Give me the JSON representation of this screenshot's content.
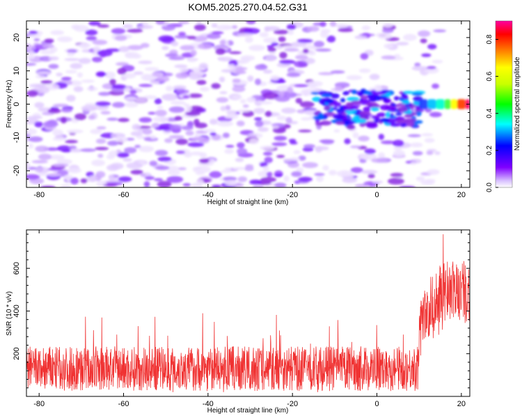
{
  "title": "KOM5.2025.270.04.52.G31",
  "colors": {
    "snr_line": "#f03232",
    "spectrogram_low": "#e6d2ff",
    "spectrogram_mid": "#8a2be2",
    "spectrogram_high": "#5a00ff"
  },
  "chart_data": [
    {
      "type": "heatmap",
      "xlabel": "Height of straight line (km)",
      "ylabel": "Frequency (Hz)",
      "xlim": [
        -83,
        22
      ],
      "ylim": [
        -25,
        25
      ],
      "xticks": [
        -80,
        -60,
        -40,
        -20,
        0,
        20
      ],
      "yticks": [
        -20,
        -10,
        0,
        10,
        20
      ],
      "colorbar": {
        "label": "Normalized spectral amplitude",
        "range": [
          0,
          0.9
        ],
        "ticks": [
          0.0,
          0.2,
          0.4,
          0.6,
          0.8
        ],
        "colormap": "rainbow (white-purple-blue-cyan-green-yellow-red-magenta)"
      },
      "features": [
        {
          "x_range": [
            -83,
            -15
          ],
          "y_range": [
            -25,
            25
          ],
          "amplitude": 0.1,
          "description": "diffuse purple noise"
        },
        {
          "x_range": [
            -15,
            10
          ],
          "y_range": [
            -7,
            4
          ],
          "amplitude": 0.3,
          "description": "concentrated blue signal near 0 Hz"
        },
        {
          "x_range": [
            10,
            22
          ],
          "y_range": [
            -1.5,
            1.5
          ],
          "amplitude": 0.9,
          "description": "strong narrow tone at 0 Hz"
        }
      ],
      "grid": false
    },
    {
      "type": "line",
      "xlabel": "Height of straight line (km)",
      "ylabel": "SNR (10 * v/v)",
      "xlim": [
        -83,
        22
      ],
      "ylim": [
        0,
        780
      ],
      "xticks": [
        -80,
        -60,
        -40,
        -20,
        0,
        20
      ],
      "yticks": [
        200,
        400,
        600
      ],
      "series": [
        {
          "segments": [
            {
              "x_range": [
                -83,
                10
              ],
              "mean": 130,
              "min": 20,
              "max": 400
            },
            {
              "x_range": [
                10,
                14
              ],
              "mean": 380,
              "min": 130,
              "max": 560
            },
            {
              "x_range": [
                14,
                22
              ],
              "mean": 490,
              "min": 250,
              "max": 780
            }
          ]
        }
      ],
      "grid": false
    }
  ]
}
